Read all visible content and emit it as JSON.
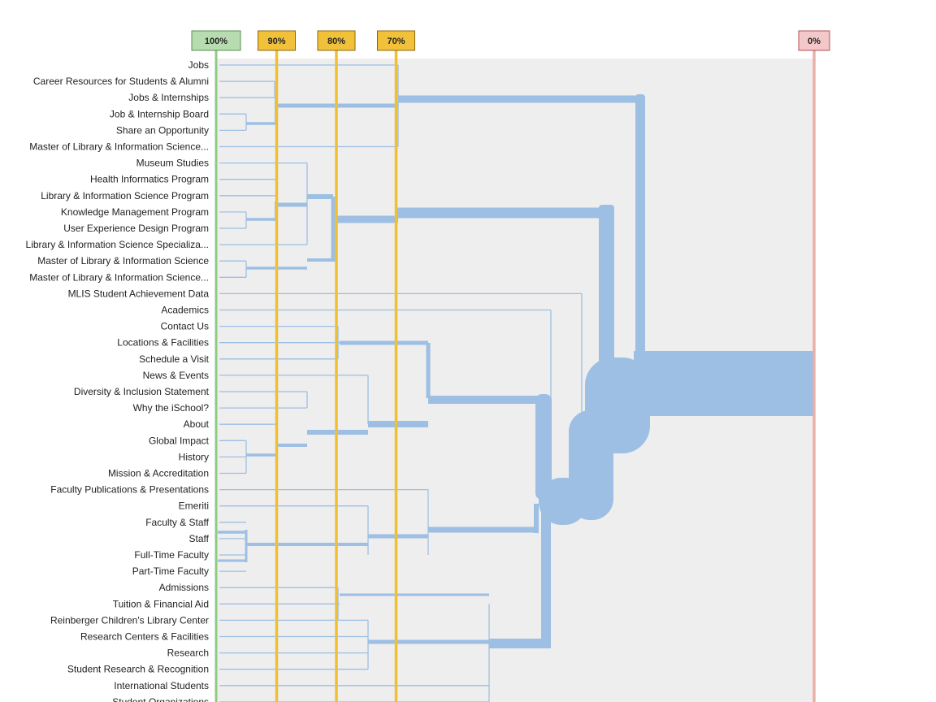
{
  "thresholds": [
    {
      "label": "100%",
      "value": 100,
      "fill": "#b7dcb0",
      "stroke": "#5a8f4f",
      "line": "#8fcb84"
    },
    {
      "label": "90%",
      "value": 90,
      "fill": "#f2c13a",
      "stroke": "#8a6a10",
      "line": "#f0c032"
    },
    {
      "label": "80%",
      "value": 80,
      "fill": "#f2c13a",
      "stroke": "#8a6a10",
      "line": "#f0c032"
    },
    {
      "label": "70%",
      "value": 70,
      "fill": "#f2c13a",
      "stroke": "#8a6a10",
      "line": "#f0c032"
    },
    {
      "label": "0%",
      "value": 0,
      "fill": "#f4c8c8",
      "stroke": "#b05050",
      "line": "#e8b0a8"
    }
  ],
  "colors": {
    "panel": "#eeeeee",
    "branch": "#9dbfe3",
    "label": "#222222"
  },
  "pages": [
    "Jobs",
    "Career Resources for Students & Alumni",
    "Jobs & Internships",
    "Job & Internship Board",
    "Share an Opportunity",
    "Master of Library & Information Science...",
    "Museum Studies",
    "Health Informatics Program",
    "Library & Information Science Program",
    "Knowledge Management Program",
    "User Experience Design Program",
    "Library & Information Science Specializa...",
    "Master of Library & Information Science",
    "Master of Library & Information Science...",
    "MLIS Student Achievement Data",
    "Academics",
    "Contact Us",
    "Locations & Facilities",
    "Schedule a Visit",
    "News & Events",
    "Diversity & Inclusion Statement",
    "Why the iSchool?",
    "About",
    "Global Impact",
    "History",
    "Mission & Accreditation",
    "Faculty Publications & Presentations",
    "Emeriti",
    "Faculty & Staff",
    "Staff",
    "Full-Time Faculty",
    "Part-Time Faculty",
    "Admissions",
    "Tuition & Financial Aid",
    "Reinberger Children's Library Center",
    "Research Centers & Facilities",
    "Research",
    "Student Research & Recognition",
    "International Students",
    "Student Organizations"
  ]
}
